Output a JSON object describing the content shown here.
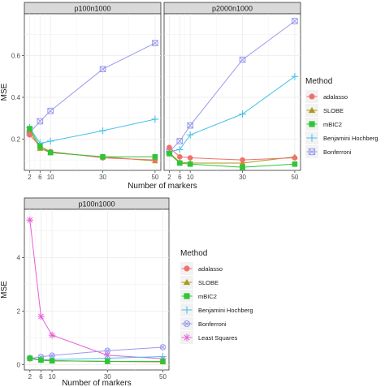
{
  "colors": {
    "adalasso": "#f0706e",
    "SLOBE": "#aa9a1d",
    "mBIC2": "#2fc535",
    "Benjamini Hochberg": "#45c2e8",
    "Bonferroni": "#9a9aee",
    "Least Squares": "#e85fd8"
  },
  "legends": [
    {
      "title": "Method",
      "items": [
        {
          "label": "adalasso",
          "key": "adalasso",
          "shape": "circle"
        },
        {
          "label": "SLOBE",
          "key": "SLOBE",
          "shape": "triangle"
        },
        {
          "label": "mBIC2",
          "key": "mBIC2",
          "shape": "square"
        },
        {
          "label": "Benjamini Hochberg",
          "key": "Benjamini Hochberg",
          "shape": "plus"
        },
        {
          "label": "Bonferroni",
          "key": "Bonferroni",
          "shape": "boxx"
        }
      ]
    },
    {
      "title": "Method",
      "items": [
        {
          "label": "adalasso",
          "key": "adalasso",
          "shape": "circle"
        },
        {
          "label": "SLOBE",
          "key": "SLOBE",
          "shape": "triangle"
        },
        {
          "label": "mBIC2",
          "key": "mBIC2",
          "shape": "square"
        },
        {
          "label": "Benjamini Hochberg",
          "key": "Benjamini Hochberg",
          "shape": "plus"
        },
        {
          "label": "Bonferroni",
          "key": "Bonferroni",
          "shape": "circlex"
        },
        {
          "label": "Least Squares",
          "key": "Least Squares",
          "shape": "star"
        }
      ]
    }
  ],
  "chart_data": [
    {
      "type": "line",
      "title": "p100n1000",
      "xlabel": "Number of markers",
      "ylabel": "MSE",
      "x": [
        2,
        6,
        10,
        30,
        50
      ],
      "xticks": [
        2,
        6,
        10,
        30,
        50
      ],
      "yticks": [
        0.2,
        0.4,
        0.6
      ],
      "ylim": [
        0.05,
        0.8
      ],
      "grid": true,
      "series": [
        {
          "name": "adalasso",
          "shape": "circle",
          "values": [
            0.22,
            0.165,
            0.14,
            0.11,
            0.1
          ]
        },
        {
          "name": "SLOBE",
          "shape": "triangle",
          "values": [
            0.24,
            0.155,
            0.135,
            0.115,
            0.095
          ]
        },
        {
          "name": "mBIC2",
          "shape": "square",
          "values": [
            0.25,
            0.165,
            0.135,
            0.115,
            0.115
          ]
        },
        {
          "name": "Benjamini Hochberg",
          "shape": "plus",
          "values": [
            0.255,
            0.18,
            0.19,
            0.24,
            0.295
          ]
        },
        {
          "name": "Bonferroni",
          "shape": "boxx",
          "values": [
            0.23,
            0.285,
            0.335,
            0.535,
            0.66
          ]
        }
      ]
    },
    {
      "type": "line",
      "title": "p2000n1000",
      "x": [
        2,
        6,
        10,
        30,
        50
      ],
      "xticks": [
        2,
        6,
        10,
        30,
        50
      ],
      "yticks": [],
      "ylim": [
        0.05,
        0.8
      ],
      "grid": true,
      "series": [
        {
          "name": "adalasso",
          "shape": "circle",
          "values": [
            0.16,
            0.115,
            0.11,
            0.1,
            0.11
          ]
        },
        {
          "name": "SLOBE",
          "shape": "triangle",
          "values": [
            0.135,
            0.09,
            0.085,
            0.085,
            0.115
          ]
        },
        {
          "name": "mBIC2",
          "shape": "square",
          "values": [
            0.13,
            0.085,
            0.08,
            0.065,
            0.08
          ]
        },
        {
          "name": "Benjamini Hochberg",
          "shape": "plus",
          "values": [
            0.14,
            0.15,
            0.22,
            0.32,
            0.5
          ]
        },
        {
          "name": "Bonferroni",
          "shape": "boxx",
          "values": [
            0.14,
            0.19,
            0.265,
            0.58,
            0.765
          ]
        }
      ]
    },
    {
      "type": "line",
      "title": "p100n1000",
      "xlabel": "Number of markers",
      "ylabel": "MSE",
      "x": [
        2,
        6,
        10,
        30,
        50
      ],
      "xticks": [
        2,
        6,
        10,
        30,
        50
      ],
      "yticks": [
        0,
        2,
        4
      ],
      "ylim": [
        -0.2,
        5.8
      ],
      "grid": true,
      "series": [
        {
          "name": "adalasso",
          "shape": "circle",
          "values": [
            0.22,
            0.17,
            0.15,
            0.12,
            0.11
          ]
        },
        {
          "name": "SLOBE",
          "shape": "triangle",
          "values": [
            0.23,
            0.16,
            0.14,
            0.12,
            0.1
          ]
        },
        {
          "name": "mBIC2",
          "shape": "square",
          "values": [
            0.24,
            0.17,
            0.14,
            0.12,
            0.12
          ]
        },
        {
          "name": "Benjamini Hochberg",
          "shape": "plus",
          "values": [
            0.25,
            0.18,
            0.19,
            0.24,
            0.3
          ]
        },
        {
          "name": "Bonferroni",
          "shape": "circlex",
          "values": [
            0.23,
            0.29,
            0.34,
            0.52,
            0.65
          ]
        },
        {
          "name": "Least Squares",
          "shape": "star",
          "values": [
            5.4,
            1.8,
            1.1,
            0.35,
            0.22
          ]
        }
      ]
    }
  ]
}
